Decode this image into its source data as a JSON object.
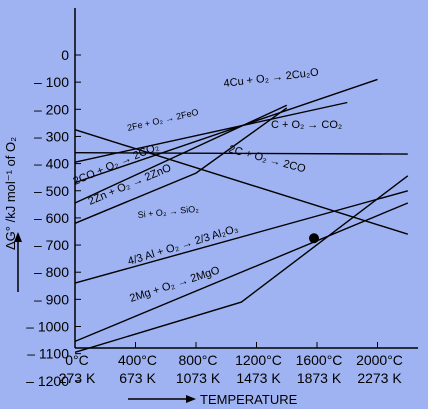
{
  "chart_data": {
    "type": "line",
    "background": "#9fb3f2",
    "line_color": "#000000",
    "ylabel_text": "ΔG° /kJ mol⁻¹ of O₂",
    "xlabel_text": "TEMPERATURE",
    "grid": false,
    "ylim": [
      -1280,
      100
    ],
    "y_ticks": [
      "0",
      "– 100",
      "– 200",
      "– 300",
      "– 400",
      "– 500",
      "– 600",
      "– 700",
      "– 800",
      "– 900",
      "– 1000",
      "– 1100",
      "– 1200"
    ],
    "y_tick_values": [
      0,
      -100,
      -200,
      -300,
      -400,
      -500,
      -600,
      -700,
      -800,
      -900,
      -1000,
      -1100,
      -1200
    ],
    "x_ticks": [
      {
        "c": "0°C",
        "k": "273 K",
        "t": 0
      },
      {
        "c": "400°C",
        "k": "673 K",
        "t": 400
      },
      {
        "c": "800°C",
        "k": "1073 K",
        "t": 800
      },
      {
        "c": "1200°C",
        "k": "1473 K",
        "t": 1200
      },
      {
        "c": "1600°C",
        "k": "1873 K",
        "t": 1600
      },
      {
        "c": "2000°C",
        "k": "2273 K",
        "t": 2000
      }
    ],
    "series": [
      {
        "label": "4Cu + O₂ → 2Cu₂O",
        "points": [
          [
            0,
            -470
          ],
          [
            2000,
            -90
          ]
        ]
      },
      {
        "label": "2Fe + O₂ → 2FeO",
        "points": [
          [
            0,
            -395
          ],
          [
            1800,
            -175
          ]
        ]
      },
      {
        "label": "C + O₂ → CO₂",
        "points": [
          [
            0,
            -360
          ],
          [
            2200,
            -365
          ]
        ]
      },
      {
        "label": "2C + O₂ → 2CO",
        "points": [
          [
            0,
            -275
          ],
          [
            2200,
            -660
          ]
        ]
      },
      {
        "label": "2CO + O₂ → 2CO₂",
        "points": [
          [
            0,
            -545
          ],
          [
            1400,
            -185
          ]
        ]
      },
      {
        "label": "2Zn + O₂ → 2ZnO",
        "points": [
          [
            0,
            -620
          ],
          [
            800,
            -435
          ],
          [
            1400,
            -195
          ]
        ]
      },
      {
        "label": "Si + O₂ → SiO₂",
        "points": [
          [
            0,
            -840
          ],
          [
            2200,
            -500
          ]
        ]
      },
      {
        "label": "4/3 Al + O₂ → 2/3 Al₂O₃",
        "points": [
          [
            0,
            -1055
          ],
          [
            2200,
            -545
          ]
        ]
      },
      {
        "label": "2Mg + O₂ → 2MgO",
        "points": [
          [
            0,
            -1095
          ],
          [
            1100,
            -910
          ],
          [
            2200,
            -445
          ]
        ]
      }
    ],
    "intersection_point": {
      "t": 1580,
      "g": -675
    }
  }
}
